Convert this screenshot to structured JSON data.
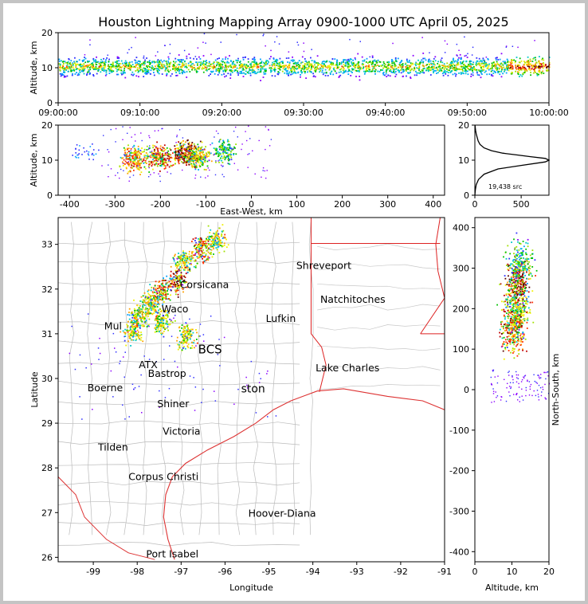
{
  "chart_data": [
    {
      "id": "time_altitude",
      "type": "scatter",
      "title": "Houston Lightning Mapping Array 0900-1000 UTC April 05, 2025",
      "xlabel": "",
      "ylabel": "Altitude, km",
      "xticks": [
        "09:00:00",
        "09:10:00",
        "09:20:00",
        "09:30:00",
        "09:40:00",
        "09:50:00",
        "10:00:00"
      ],
      "xlim": [
        0,
        60
      ],
      "ylim": [
        0,
        20
      ],
      "yticks": [
        0,
        10,
        20
      ],
      "band": {
        "center_altitude_km": 10.5,
        "spread_km": 2.5
      }
    },
    {
      "id": "eastwest_altitude",
      "type": "scatter",
      "xlabel": "East-West, km",
      "ylabel": "Altitude, km",
      "xlim": [
        -425,
        425
      ],
      "ylim": [
        0,
        20
      ],
      "xticks": [
        -400,
        -300,
        -200,
        -100,
        0,
        100,
        200,
        300,
        400
      ],
      "yticks": [
        0,
        10,
        20
      ],
      "clusters": [
        {
          "x": -258,
          "altitude": 10.5,
          "intensity": 0.8
        },
        {
          "x": -205,
          "altitude": 11,
          "intensity": 0.85
        },
        {
          "x": -145,
          "altitude": 12,
          "intensity": 1.0
        },
        {
          "x": -118,
          "altitude": 11,
          "intensity": 0.7
        },
        {
          "x": -60,
          "altitude": 13,
          "intensity": 0.5
        }
      ]
    },
    {
      "id": "altitude_histogram",
      "type": "line",
      "xlabel": "",
      "ylabel": "",
      "xlim": [
        0,
        800
      ],
      "ylim": [
        0,
        20
      ],
      "xticks": [
        0,
        500
      ],
      "yticks": [
        0,
        10,
        20
      ],
      "annotation": "19,438 src",
      "profile": [
        [
          0,
          0
        ],
        [
          2,
          0.5
        ],
        [
          5,
          1.5
        ],
        [
          15,
          3
        ],
        [
          40,
          4.5
        ],
        [
          100,
          6
        ],
        [
          250,
          7.5
        ],
        [
          500,
          8.5
        ],
        [
          760,
          9.5
        ],
        [
          800,
          10
        ],
        [
          760,
          10.5
        ],
        [
          600,
          11
        ],
        [
          450,
          11.5
        ],
        [
          300,
          12
        ],
        [
          180,
          12.7
        ],
        [
          100,
          13.5
        ],
        [
          55,
          14.5
        ],
        [
          35,
          15.5
        ],
        [
          25,
          16.5
        ],
        [
          15,
          17.5
        ],
        [
          8,
          18.5
        ],
        [
          4,
          19.3
        ],
        [
          2,
          20
        ]
      ]
    },
    {
      "id": "plan_view",
      "type": "scatter",
      "xlabel": "Longitude",
      "ylabel": "Latitude",
      "xlim": [
        -99.8,
        -91
      ],
      "ylim": [
        25.9,
        33.6
      ],
      "xticks": [
        -99,
        -98,
        -97,
        -96,
        -95,
        -94,
        -93,
        -92,
        -91
      ],
      "yticks": [
        26,
        27,
        28,
        29,
        30,
        31,
        32,
        33
      ],
      "cities": [
        {
          "name": "Corsicana",
          "lon": -96.47,
          "lat": 32.09,
          "color": "#000000"
        },
        {
          "name": "Waco",
          "lon": -97.14,
          "lat": 31.55,
          "color": "#000000"
        },
        {
          "name": "Shreveport",
          "lon": -93.75,
          "lat": 32.52,
          "color": "#000000"
        },
        {
          "name": "Natchitoches",
          "lon": -93.09,
          "lat": 31.76,
          "color": "#000000"
        },
        {
          "name": "Lufkin",
          "lon": -94.73,
          "lat": 31.34,
          "color": "#000000"
        },
        {
          "name": "Bastrop",
          "lon": -97.32,
          "lat": 30.11,
          "color": "#000000"
        },
        {
          "name": "Boerne",
          "lon": -98.73,
          "lat": 29.79,
          "color": "#000000"
        },
        {
          "name": "Lake Charles",
          "lon": -93.21,
          "lat": 30.23,
          "color": "#000000"
        },
        {
          "name": "Shiner",
          "lon": -97.18,
          "lat": 29.43,
          "color": "#000000"
        },
        {
          "name": "Victoria",
          "lon": -96.99,
          "lat": 28.81,
          "color": "#000000"
        },
        {
          "name": "Tilden",
          "lon": -98.55,
          "lat": 28.46,
          "color": "#000000"
        },
        {
          "name": "Corpus Christi",
          "lon": -97.4,
          "lat": 27.8,
          "color": "#000000"
        },
        {
          "name": "Port Isabel",
          "lon": -97.2,
          "lat": 26.07,
          "color": "#000000"
        },
        {
          "name": "Mul",
          "lon": -98.55,
          "lat": 31.17,
          "color": "#f08a3c"
        },
        {
          "name": "ATX",
          "lon": -97.75,
          "lat": 30.3,
          "color": "#f08a3c"
        },
        {
          "name": "BCS",
          "lon": -96.34,
          "lat": 30.63,
          "color": "#6b0000"
        },
        {
          "name": "ston",
          "lon": -95.36,
          "lat": 29.76,
          "color": "#f0a000"
        },
        {
          "name": "Hoover-Diana",
          "lon": -94.7,
          "lat": 26.98,
          "color": "#0000ff"
        }
      ],
      "storm_cells": [
        {
          "lon": -96.2,
          "lat": 33.1
        },
        {
          "lon": -96.55,
          "lat": 32.9
        },
        {
          "lon": -96.95,
          "lat": 32.65
        },
        {
          "lon": -97.1,
          "lat": 32.2
        },
        {
          "lon": -97.45,
          "lat": 31.95
        },
        {
          "lon": -97.7,
          "lat": 31.7
        },
        {
          "lon": -97.95,
          "lat": 31.45
        },
        {
          "lon": -98.1,
          "lat": 31.1
        },
        {
          "lon": -97.45,
          "lat": 31.3
        },
        {
          "lon": -96.9,
          "lat": 30.95
        }
      ]
    },
    {
      "id": "northsouth_altitude",
      "type": "scatter",
      "xlabel": "Altitude, km",
      "ylabel": "North-South, km",
      "xlim": [
        0,
        20
      ],
      "ylim": [
        -425,
        425
      ],
      "xticks": [
        0,
        10,
        20
      ],
      "yticks": [
        -400,
        -300,
        -200,
        -100,
        0,
        100,
        200,
        300,
        400
      ],
      "clusters": [
        {
          "y": 260,
          "altitude": 11.5,
          "intensity": 1.0
        },
        {
          "y": 200,
          "altitude": 11,
          "intensity": 0.6
        },
        {
          "y": 150,
          "altitude": 10.5,
          "intensity": 0.9
        },
        {
          "y": 320,
          "altitude": 12,
          "intensity": 0.5
        }
      ]
    }
  ]
}
